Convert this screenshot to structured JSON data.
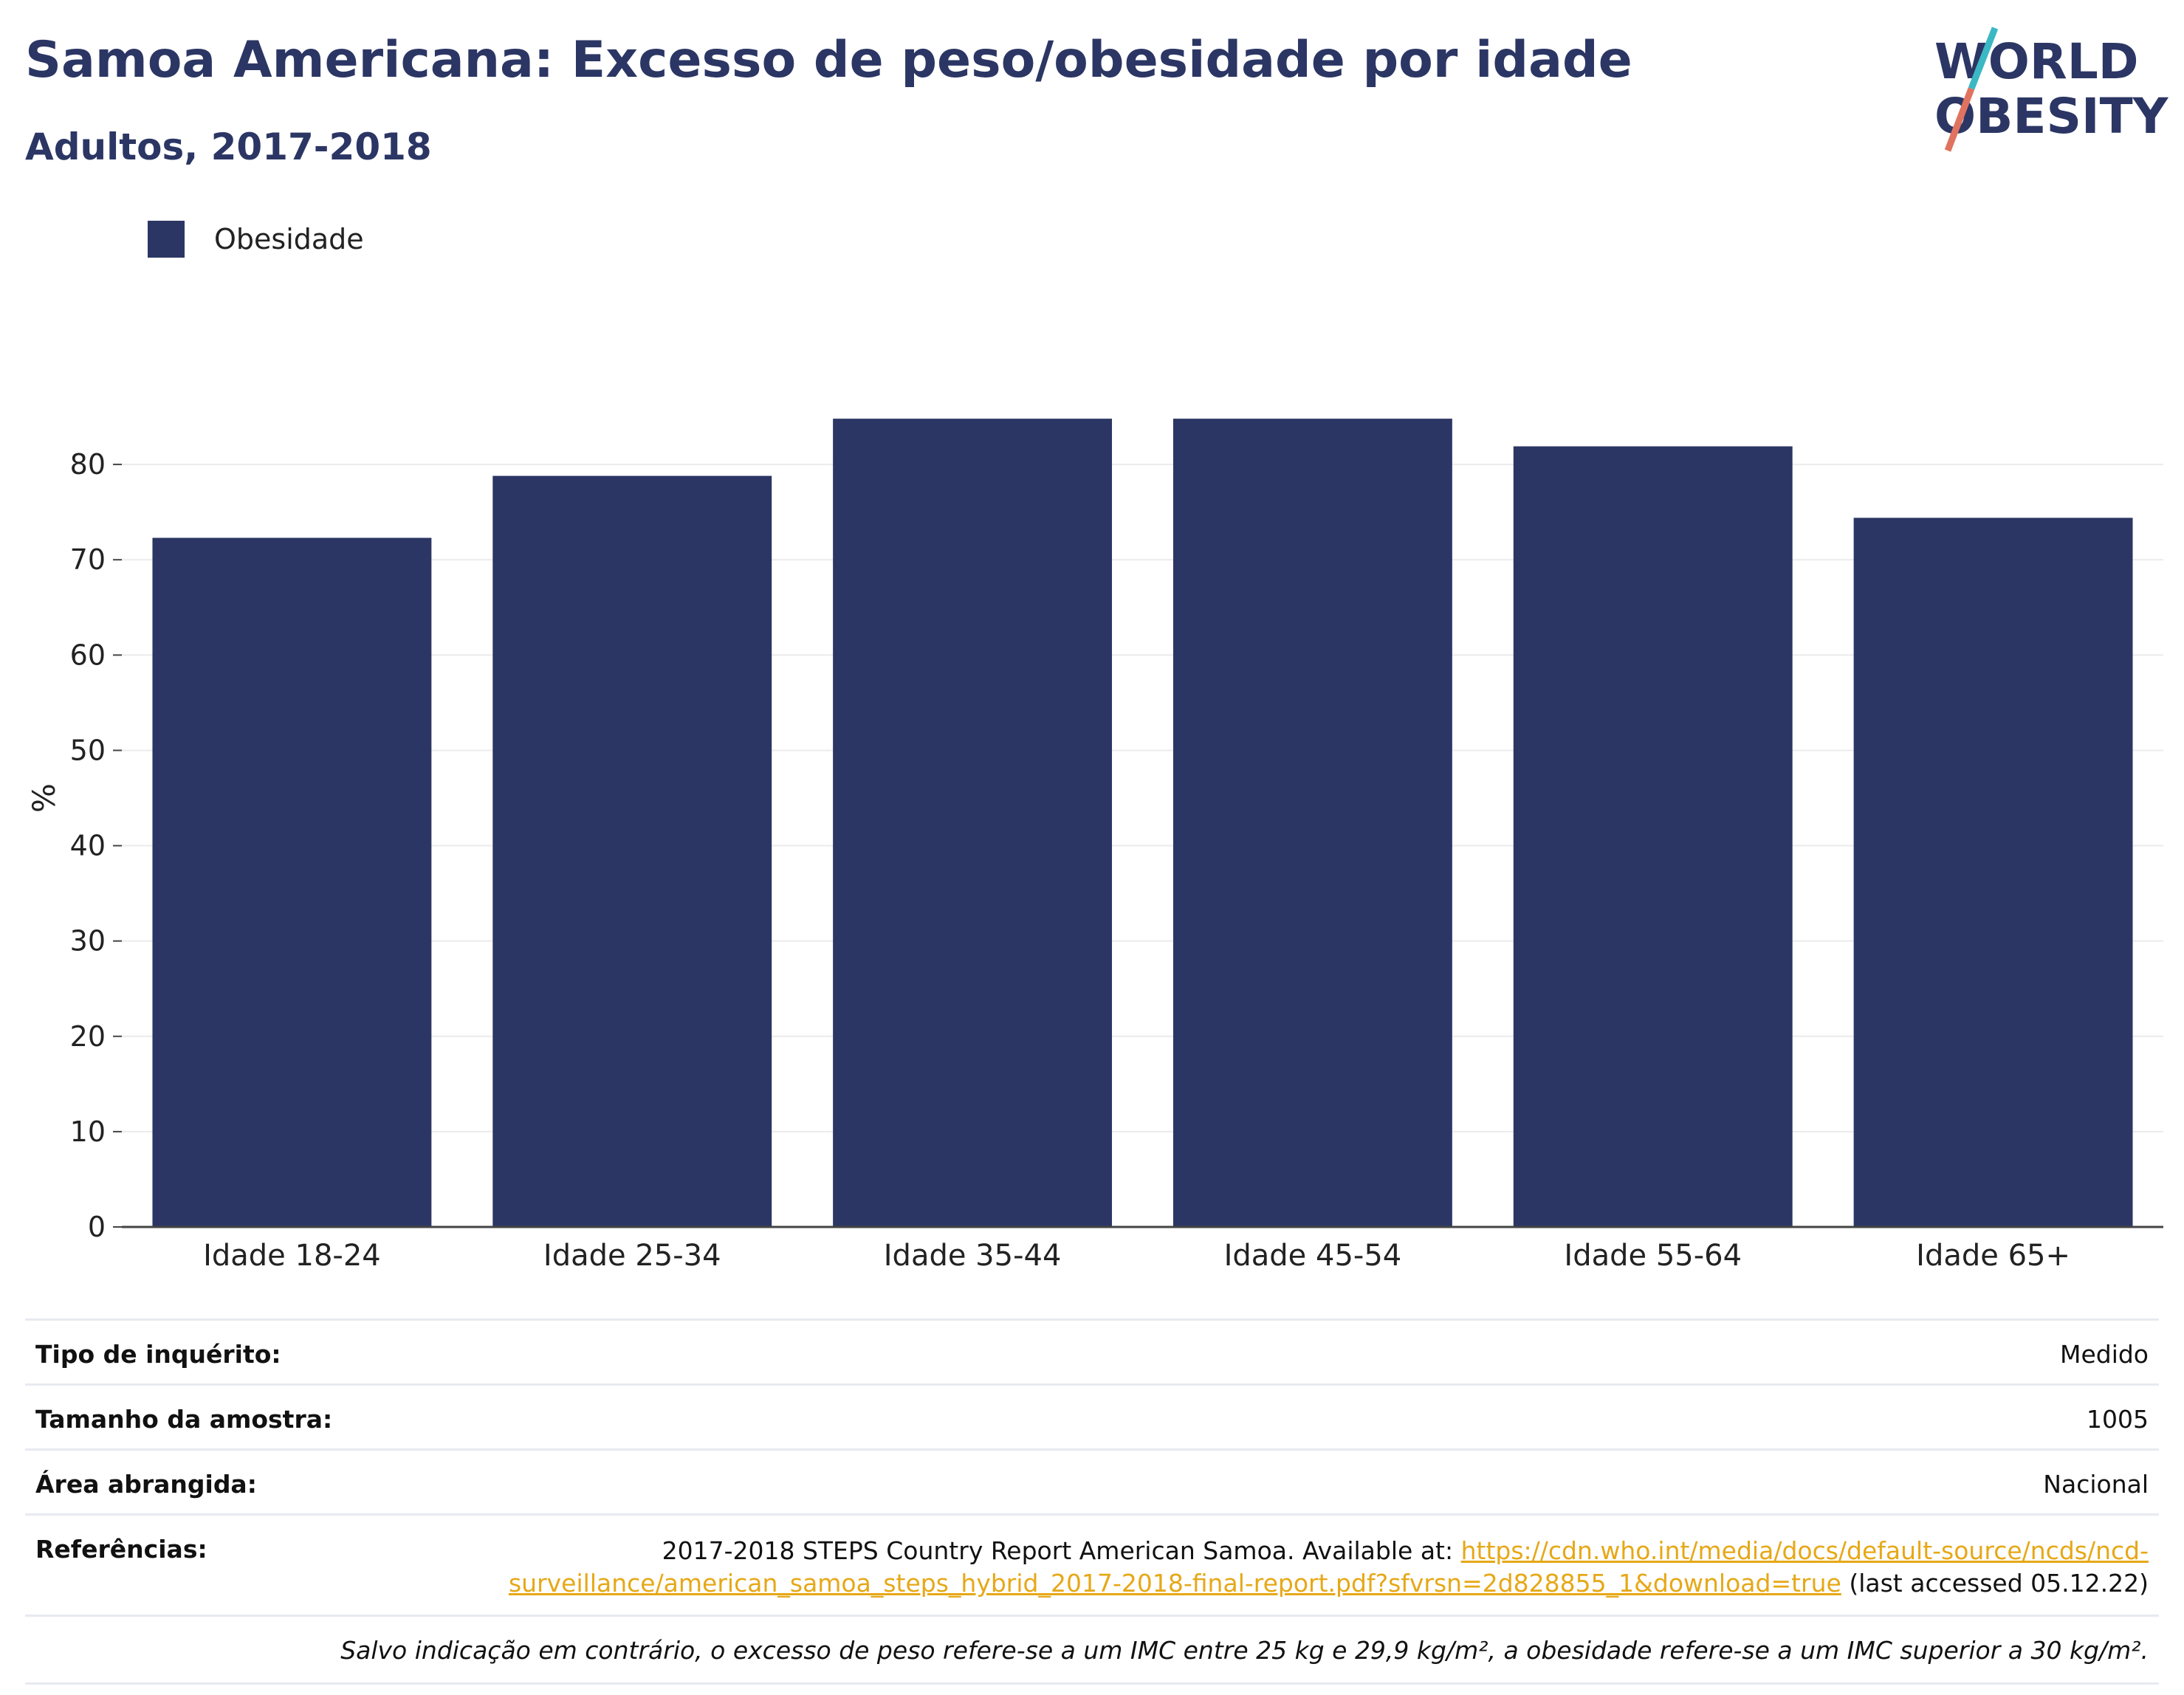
{
  "header": {
    "title": "Samoa Americana: Excesso de peso/obesidade por idade",
    "subtitle": "Adultos, 2017-2018"
  },
  "logo": {
    "line1": "WORLD",
    "line2": "OBESITY",
    "accent_colors": [
      "#e0735f",
      "#3bb8c4"
    ]
  },
  "legend": {
    "label": "Obesidade",
    "color": "#2b3664"
  },
  "chart_data": {
    "type": "bar",
    "categories": [
      "Idade 18-24",
      "Idade 25-34",
      "Idade 35-44",
      "Idade 45-54",
      "Idade 55-64",
      "Idade 65+"
    ],
    "series": [
      {
        "name": "Obesidade",
        "values": [
          72.3,
          78.8,
          84.8,
          84.8,
          81.9,
          74.4
        ],
        "color": "#2b3664"
      }
    ],
    "ylabel": "%",
    "xlabel": "",
    "ylim": [
      0,
      90
    ],
    "yticks": [
      0,
      10,
      20,
      30,
      40,
      50,
      60,
      70,
      80
    ],
    "grid": true,
    "legend_position": "top-left"
  },
  "info": {
    "survey_type_label": "Tipo de inquérito:",
    "survey_type_value": "Medido",
    "sample_size_label": "Tamanho da amostra:",
    "sample_size_value": "1005",
    "area_label": "Área abrangida:",
    "area_value": "Nacional",
    "references_label": "Referências:",
    "references_text": "2017-2018 STEPS Country Report American Samoa. Available at:",
    "references_link": "https://cdn.who.int/media/docs/default-source/ncds/ncd-surveillance/american_samoa_steps_hybrid_2017-2018-final-report.pdf?sfvrsn=2d828855_1&download=true",
    "references_suffix": "(last accessed 05.12.22)",
    "note": "Salvo indicação em contrário, o excesso de peso refere-se a um IMC entre 25 kg e 29,9 kg/m², a obesidade refere-se a um IMC superior a 30 kg/m²."
  }
}
